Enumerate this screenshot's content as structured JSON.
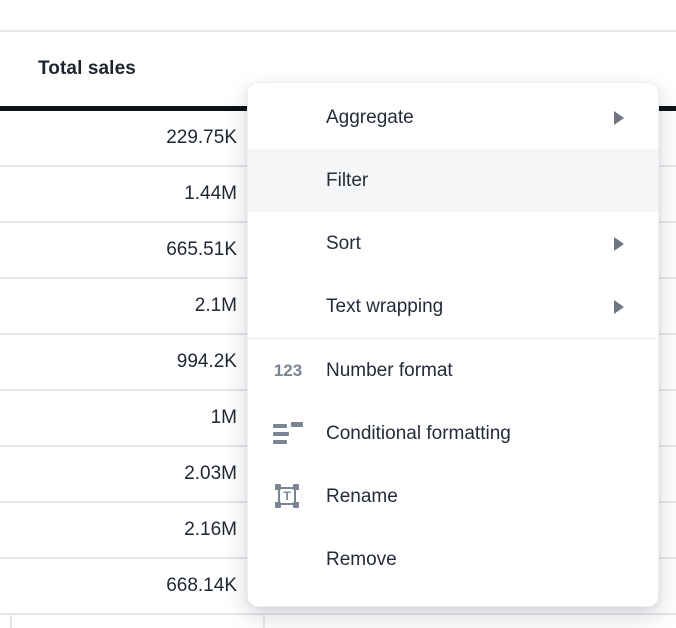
{
  "table": {
    "column_header": "Total sales",
    "values": [
      "229.75K",
      "1.44M",
      "665.51K",
      "2.1M",
      "994.2K",
      "1M",
      "2.03M",
      "2.16M",
      "668.14K"
    ]
  },
  "menu": {
    "items": [
      {
        "label": "Aggregate",
        "submenu": true
      },
      {
        "label": "Filter",
        "hovered": true
      },
      {
        "label": "Sort",
        "submenu": true
      },
      {
        "label": "Text wrapping",
        "submenu": true
      },
      {
        "label": "Number format",
        "icon": "number-format-123-icon"
      },
      {
        "label": "Conditional formatting",
        "icon": "conditional-formatting-icon"
      },
      {
        "label": "Rename",
        "icon": "rename-text-box-icon"
      },
      {
        "label": "Remove"
      }
    ],
    "icon_123_text": "123",
    "icon_rename_letter": "T"
  },
  "colors": {
    "header_underline": "#0e1319",
    "grid_border": "#e2e6ed",
    "menu_hover_bg": "#f5f6f8",
    "menu_text": "#242c3a",
    "icon_gray": "#7b8494"
  }
}
